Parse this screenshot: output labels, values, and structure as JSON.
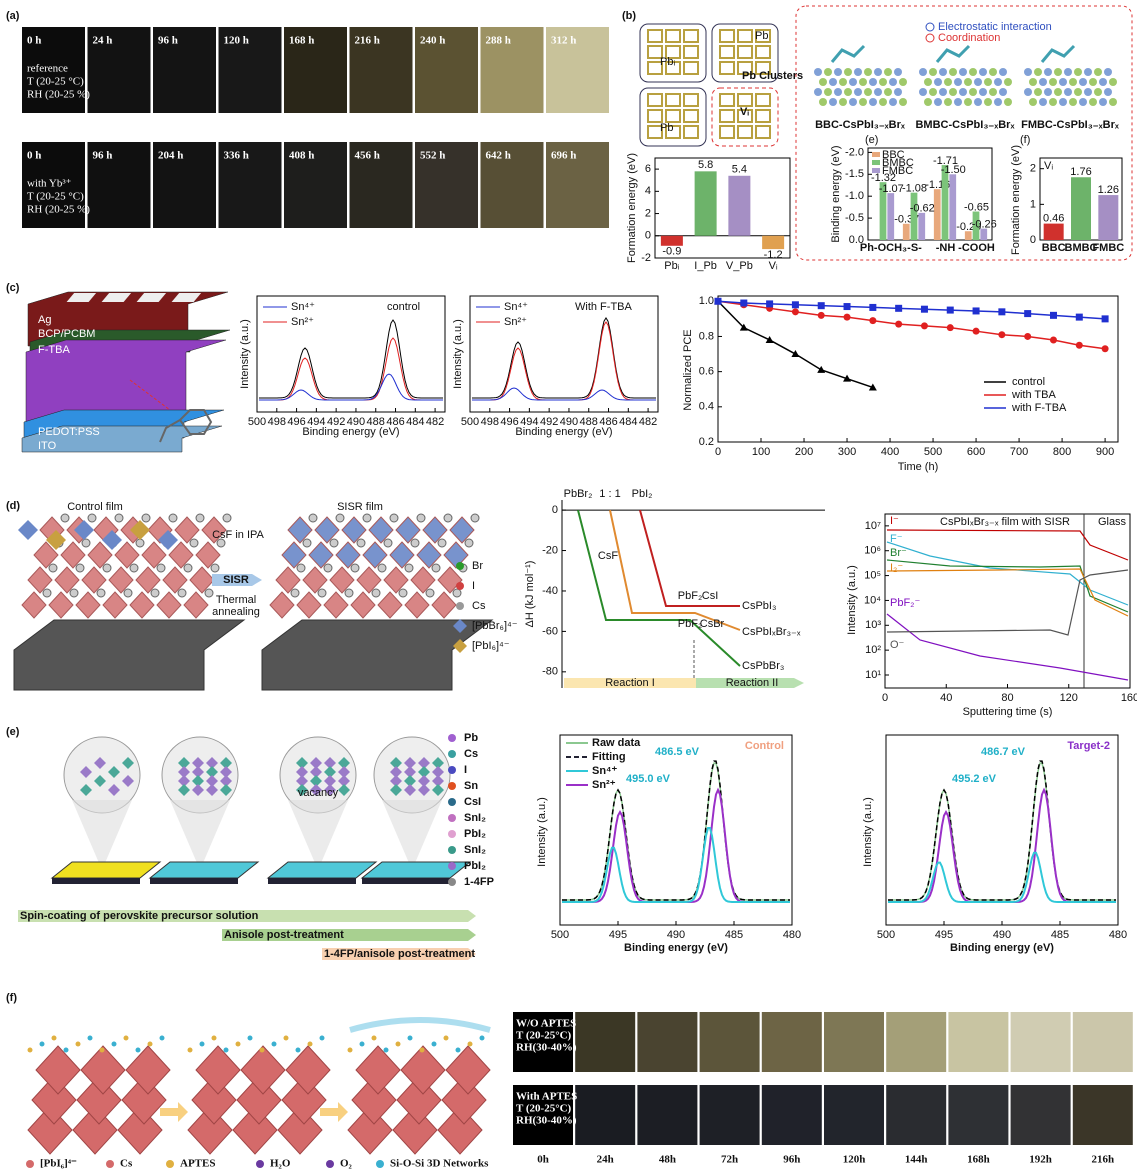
{
  "a": {
    "label": "(a)",
    "rows": [
      {
        "times": [
          "0 h",
          "24 h",
          "96 h",
          "120 h",
          "168 h",
          "216 h",
          "240 h",
          "288 h",
          "312 h"
        ],
        "notes": [
          "reference",
          "T (20-25 °C)",
          "RH (20-25 %)"
        ]
      },
      {
        "times": [
          "0 h",
          "96 h",
          "204 h",
          "336 h",
          "408 h",
          "456 h",
          "552 h",
          "642 h",
          "696 h"
        ],
        "notes": [
          "with Yb³⁺",
          "T (20-25 °C)",
          "RH (20-25 %)"
        ]
      }
    ]
  },
  "b": {
    "label": "(b)",
    "sites": [
      "Pbᵢ",
      "Pb",
      "Pb Clusters",
      "Pb",
      "Vᵢ"
    ],
    "legend": [
      "Electrostatic interaction",
      "Coordination"
    ],
    "structures": [
      "BBC-CsPbI₃₋ₓBrₓ",
      "BMBC-CsPbI₃₋ₓBrₓ",
      "FMBC-CsPbI₃₋ₓBrₓ"
    ],
    "formation": {
      "type": "bar",
      "ylabel": "Formation energy (eV)",
      "categories": [
        "Pbᵢ",
        "I_Pb",
        "V_Pb",
        "Vᵢ"
      ],
      "values": [
        -0.9,
        5.8,
        5.4,
        -1.2
      ],
      "colors": [
        "#d0312d",
        "#6db36a",
        "#a58fc4",
        "#e0a050"
      ],
      "ylim": [
        -2,
        7
      ],
      "yticks": [
        -2,
        0,
        2,
        4,
        6
      ]
    },
    "binding": {
      "type": "bar",
      "label": "(e)",
      "ylabel": "Binding energy (eV)",
      "categories": [
        "Ph-OCH₃",
        "-S-",
        "-NH",
        "-COOH"
      ],
      "series": [
        {
          "name": "BBC",
          "color": "#e8a87c",
          "values": [
            null,
            -0.37,
            -1.16,
            -0.2
          ],
          "value_labels": [
            null,
            "-0.37",
            "-1.16",
            "-0.20"
          ]
        },
        {
          "name": "BMBC",
          "color": "#7cc47a",
          "values": [
            -1.32,
            -1.08,
            -1.71,
            -0.65
          ],
          "value_labels": [
            "-1.32",
            "-1.08",
            "-1.71",
            "-0.65"
          ]
        },
        {
          "name": "FMBC",
          "color": "#a99bd0",
          "values": [
            -1.07,
            -0.62,
            -1.5,
            -0.26
          ],
          "value_labels": [
            "-1.07",
            "-0.62",
            "-1.50",
            "-0.26"
          ]
        }
      ],
      "ylim": [
        0,
        -2.1
      ],
      "yticks": [
        {
          "value": -2,
          "label": "-2.0"
        },
        -1.5,
        {
          "value": -1,
          "label": "-1.0"
        },
        -0.5,
        {
          "value": 0,
          "label": "0.0"
        }
      ]
    },
    "vacancy": {
      "type": "bar",
      "label": "(f)",
      "title": "Vᵢ",
      "ylabel": "Formation energy (eV)",
      "categories": [
        "BBC",
        "BMBC",
        "FMBC"
      ],
      "values": [
        0.46,
        1.76,
        1.26
      ],
      "colors": [
        "#d0312d",
        "#6db36a",
        "#a58fc4"
      ],
      "ylim": [
        0,
        2.3
      ],
      "yticks": [
        0,
        1,
        2
      ]
    }
  },
  "c": {
    "label": "(c)",
    "layers": [
      "Ag",
      "BCP/PCBM",
      "F-TBA",
      "PEDOT:PSS",
      "ITO"
    ],
    "xps": [
      {
        "title": "control",
        "legend": [
          "Sn⁴⁺",
          "Sn²⁺"
        ],
        "ylabel": "Intensity (a.u.)",
        "xlabel": "Binding energy (eV)",
        "xlim": [
          500,
          481
        ],
        "xticks": [
          500,
          498,
          496,
          494,
          492,
          490,
          488,
          486,
          484,
          482
        ]
      },
      {
        "title": "With F-TBA",
        "legend": [
          "Sn⁴⁺",
          "Sn²⁺"
        ],
        "ylabel": "Intensity (a.u.)",
        "xlabel": "Binding energy (eV)",
        "xlim": [
          500,
          481
        ],
        "xticks": [
          500,
          498,
          496,
          494,
          492,
          490,
          488,
          486,
          484,
          482
        ]
      }
    ],
    "stability": {
      "type": "line",
      "ylabel": "Normalized PCE",
      "xlabel": "Time (h)",
      "x": [
        0,
        60,
        120,
        180,
        240,
        300,
        360,
        420,
        480,
        540,
        600,
        660,
        720,
        780,
        840,
        900
      ],
      "series": [
        {
          "name": "control",
          "color": "#000000",
          "marker": "triangle",
          "values": [
            1.0,
            0.85,
            0.78,
            0.7,
            0.61,
            0.56,
            0.51,
            null,
            null,
            null,
            null,
            null,
            null,
            null,
            null,
            null
          ]
        },
        {
          "name": "with TBA",
          "color": "#e02020",
          "marker": "circle",
          "values": [
            1.0,
            0.98,
            0.96,
            0.94,
            0.92,
            0.91,
            0.89,
            0.87,
            0.86,
            0.85,
            0.83,
            0.81,
            0.8,
            0.78,
            0.75,
            0.73
          ]
        },
        {
          "name": "with F-TBA",
          "color": "#2030d0",
          "marker": "square",
          "values": [
            1.0,
            0.99,
            0.985,
            0.98,
            0.975,
            0.97,
            0.965,
            0.96,
            0.955,
            0.95,
            0.945,
            0.94,
            0.93,
            0.92,
            0.91,
            0.9
          ]
        }
      ],
      "xlim": [
        0,
        930
      ],
      "xticks": [
        0,
        100,
        200,
        300,
        400,
        500,
        600,
        700,
        800,
        900
      ],
      "ylim": [
        0.2,
        1.03
      ],
      "yticks": [
        0.2,
        0.4,
        0.6,
        0.8,
        {
          "value": 1,
          "label": "1.0"
        }
      ]
    }
  },
  "d": {
    "label": "(d)",
    "films": [
      "Control film",
      "SISR film"
    ],
    "process": [
      "CsF in IPA",
      "SISR",
      "Thermal",
      "annealing"
    ],
    "legend": [
      "Br",
      "I",
      "Cs",
      "[PbBr₆]⁴⁻",
      "[PbI₆]⁴⁻"
    ],
    "enthalpy": {
      "ylabel": "ΔH (kJ mol⁻¹)",
      "ylim": [
        -88,
        5
      ],
      "yticks": [
        0,
        -20,
        -40,
        -60,
        -80
      ],
      "labels": [
        "PbBr₂",
        "1 : 1",
        "PbI₂",
        "CsF",
        "PbF₂",
        "CsI",
        "PbF₂",
        "CsBr",
        "CsPbI₃",
        "CsPbIₓBr₃₋ₓ",
        "CsPbBr₃"
      ],
      "reactions": [
        "Reaction I",
        "Reaction II"
      ]
    },
    "tof": {
      "title": "CsPbIₓBr₃₋ₓ film with SISR",
      "region": "Glass",
      "ylabel": "Intensity (a.u.)",
      "xlabel": "Sputtering time (s)",
      "xlim": [
        0,
        160
      ],
      "xticks": [
        0,
        40,
        80,
        120,
        160
      ],
      "log": true,
      "ylim": [
        3,
        30000000
      ],
      "yticks": [
        {
          "value": 10,
          "label": "10¹"
        },
        {
          "value": 100,
          "label": "10²"
        },
        {
          "value": 1000,
          "label": "10³"
        },
        {
          "value": 10000,
          "label": "10⁴"
        },
        {
          "value": 100000,
          "label": "10⁵"
        },
        {
          "value": 1000000,
          "label": "10⁶"
        },
        {
          "value": 10000000,
          "label": "10⁷"
        }
      ],
      "series": [
        {
          "name": "I⁻",
          "color": "#c00000"
        },
        {
          "name": "F⁻",
          "color": "#30b0d0"
        },
        {
          "name": "Br⁻",
          "color": "#208030"
        },
        {
          "name": "I₂⁻",
          "color": "#e08010"
        },
        {
          "name": "PbF₂⁻",
          "color": "#8010c0"
        },
        {
          "name": "O⁻",
          "color": "#555555"
        }
      ]
    }
  },
  "e": {
    "label": "(e)",
    "legend": [
      "Pb",
      "Cs",
      "I",
      "Sn",
      "CsI",
      "SnI₂",
      "PbI₂",
      "SnI₂",
      "PbI₂",
      "1-4FP"
    ],
    "vacancy": "vacancy",
    "steps": [
      "Spin-coating of perovskite precursor solution",
      "Anisole post-treatment",
      "1-4FP/anisole post-treatment"
    ],
    "xps": [
      {
        "title": "Control",
        "legend": [
          "Raw data",
          "Fitting",
          "Sn⁴⁺",
          "Sn²⁺"
        ],
        "peaks": [
          "486.5 eV",
          "495.0 eV"
        ],
        "xlabel": "Binding energy (eV)",
        "ylabel": "Intensity (a.u.)",
        "xlim": [
          500,
          480
        ],
        "xticks": [
          500,
          495,
          490,
          485,
          480
        ]
      },
      {
        "title": "Target-2",
        "peaks": [
          "486.7 eV",
          "495.2 eV"
        ],
        "xlabel": "Binding energy (eV)",
        "ylabel": "Intensity (a.u.)",
        "xlim": [
          500,
          480
        ],
        "xticks": [
          500,
          495,
          490,
          485,
          480
        ]
      }
    ]
  },
  "f": {
    "label": "(f)",
    "legend": [
      "[PbI₆]⁴⁻",
      "Cs",
      "APTES",
      "H₂O",
      "O₂",
      "Si-O-Si 3D Networks"
    ],
    "rows": [
      [
        "W/O APTES",
        "T  (20-25°C)",
        "RH(30-40%)"
      ],
      [
        "With APTES",
        "T  (20-25°C)",
        "RH(30-40%)"
      ]
    ],
    "times": [
      "0h",
      "24h",
      "48h",
      "72h",
      "96h",
      "120h",
      "144h",
      "168h",
      "192h",
      "216h"
    ]
  }
}
